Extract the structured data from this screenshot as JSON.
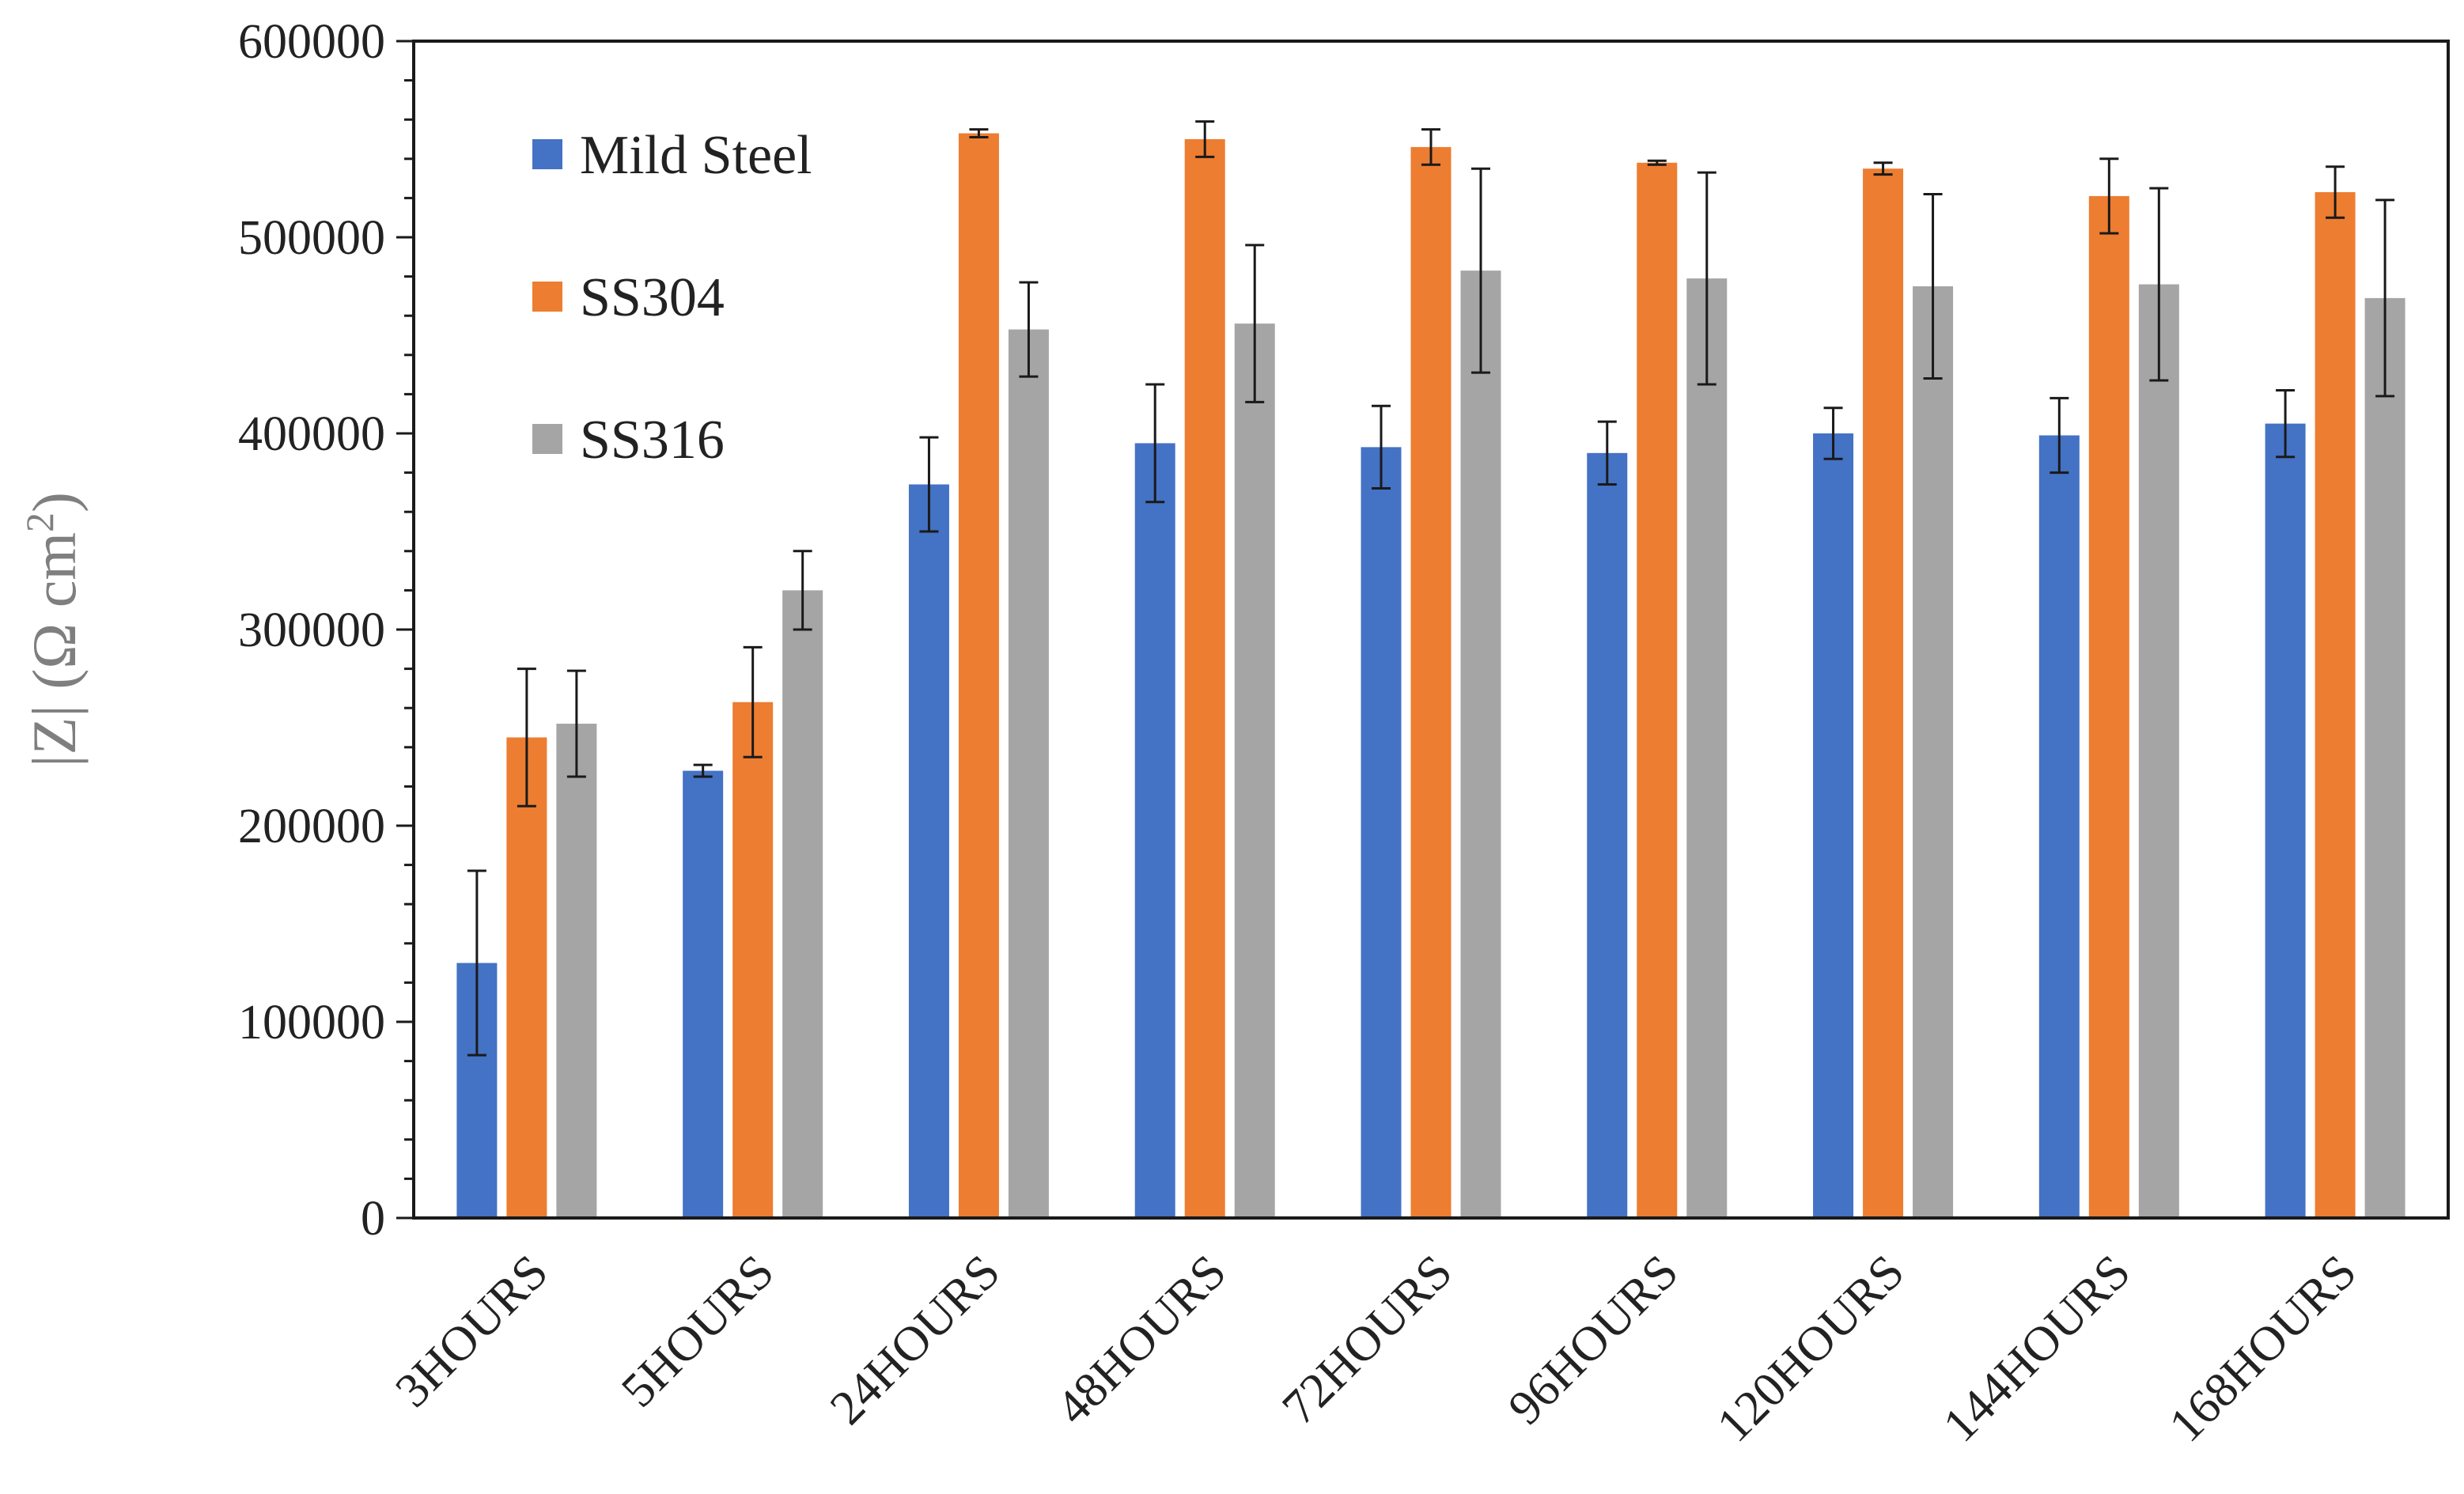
{
  "chart_data": {
    "type": "bar",
    "title": "",
    "xlabel": "",
    "ylabel": "|Z| (Ω cm²)",
    "ylabel_parts": {
      "main": "|Z| (Ω cm",
      "sup": "2",
      "close": ")"
    },
    "ylim": [
      0,
      600000
    ],
    "ytick_step": 100000,
    "yticks": [
      "0",
      "100000",
      "200000",
      "300000",
      "400000",
      "500000",
      "600000"
    ],
    "grid": false,
    "legend_position": "top-left",
    "categories": [
      "3HOURS",
      "5HOURS",
      "24HOURS",
      "48HOURS",
      "72HOURS",
      "96HOURS",
      "120HOURS",
      "144HOURS",
      "168HOURS"
    ],
    "series": [
      {
        "name": "Mild Steel",
        "color": "#4472c4",
        "values": [
          130000,
          228000,
          374000,
          395000,
          393000,
          390000,
          400000,
          399000,
          405000
        ],
        "errors": [
          47000,
          3000,
          24000,
          30000,
          21000,
          16000,
          13000,
          19000,
          17000
        ]
      },
      {
        "name": "SS304",
        "color": "#ed7d31",
        "values": [
          245000,
          263000,
          553000,
          550000,
          546000,
          538000,
          535000,
          521000,
          523000
        ],
        "errors": [
          35000,
          28000,
          2000,
          9000,
          9000,
          1000,
          3000,
          19000,
          13000
        ]
      },
      {
        "name": "SS316",
        "color": "#a5a5a5",
        "values": [
          252000,
          320000,
          453000,
          456000,
          483000,
          479000,
          475000,
          476000,
          469000
        ],
        "errors": [
          27000,
          20000,
          24000,
          40000,
          52000,
          54000,
          47000,
          49000,
          50000
        ]
      }
    ]
  }
}
